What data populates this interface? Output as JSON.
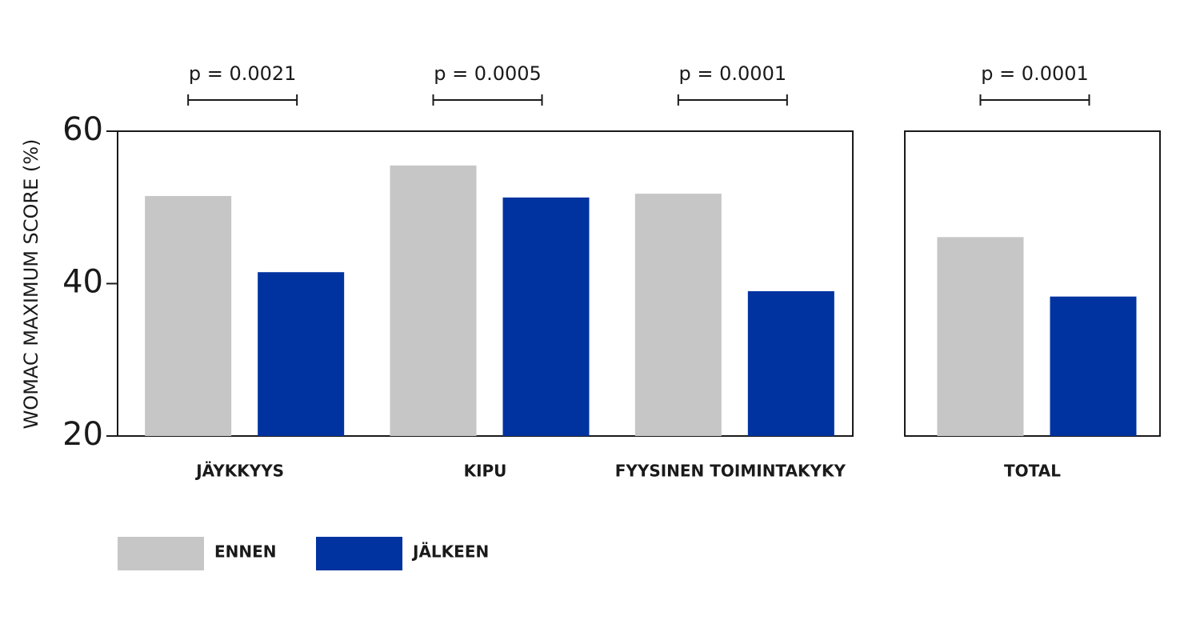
{
  "chart_data": [
    {
      "type": "bar",
      "y_label": "WOMAC MAXIMUM SCORE (%)",
      "categories": [
        "JÄYKKYYS",
        "KIPU",
        "FYYSINEN TOIMINTAKYKY"
      ],
      "p_values": [
        "p = 0.0021",
        "p = 0.0005",
        "p = 0.0001"
      ],
      "series": [
        {
          "name": "ENNEN",
          "color": "#c6c6c6",
          "values": [
            51.5,
            55.5,
            51.8
          ]
        },
        {
          "name": "JÄLKEEN",
          "color": "#0033a0",
          "values": [
            41.5,
            51.3,
            39.0
          ]
        }
      ],
      "ylim": [
        20,
        60
      ],
      "yticks": [
        20,
        40,
        60
      ]
    },
    {
      "type": "bar",
      "categories": [
        "TOTAL"
      ],
      "p_values": [
        "p = 0.0001"
      ],
      "series": [
        {
          "color": "#c6c6c6",
          "values": [
            46.1
          ]
        },
        {
          "color": "#0033a0",
          "values": [
            38.3
          ]
        }
      ],
      "ylim": [
        20,
        60
      ]
    }
  ]
}
